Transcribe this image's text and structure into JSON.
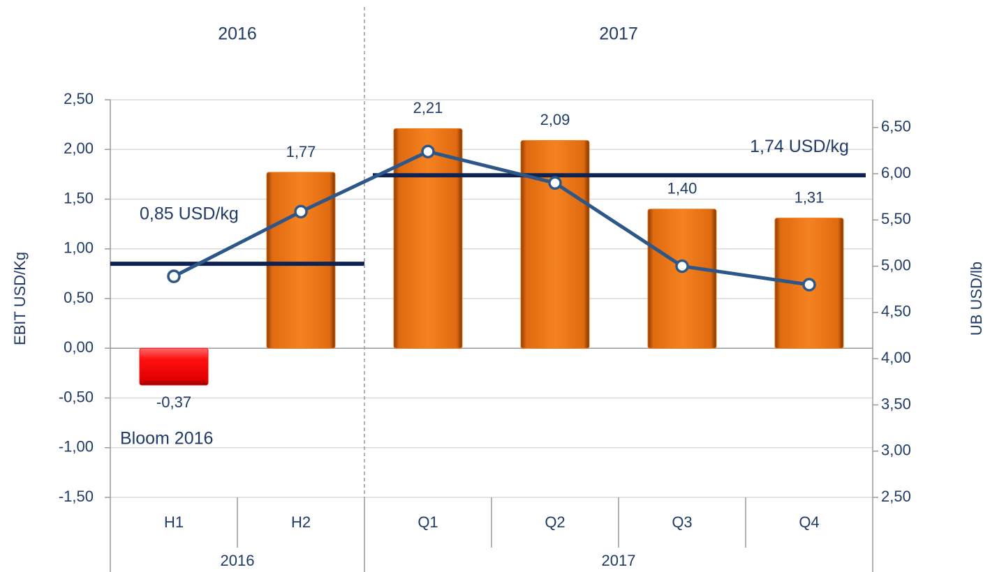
{
  "chart_data": {
    "type": "bar_line",
    "groups": [
      {
        "label": "2016",
        "categories": [
          "H1",
          "H2"
        ],
        "average": {
          "value": 0.85,
          "label": "0,85 USD/kg"
        }
      },
      {
        "label": "2017",
        "categories": [
          "Q1",
          "Q2",
          "Q3",
          "Q4"
        ],
        "average": {
          "value": 1.74,
          "label": "1,74 USD/kg"
        }
      }
    ],
    "series": [
      {
        "name": "EBIT USD/Kg",
        "type": "bar",
        "color": "#f07814",
        "negative_color": "#ff0a0a",
        "values": [
          -0.37,
          1.77,
          2.21,
          2.09,
          1.4,
          1.31
        ],
        "value_labels": [
          "-0,37",
          "1,77",
          "2,21",
          "2,09",
          "1,40",
          "1,31"
        ]
      },
      {
        "name": "UB USD/lb",
        "type": "line",
        "axis": "y2",
        "color": "#2d5689",
        "values": [
          4.89,
          5.59,
          6.24,
          5.9,
          5.0,
          4.8
        ]
      }
    ],
    "average_color": "#0e2352",
    "annotations": [
      {
        "text": "Bloom 2016"
      }
    ],
    "ylabel": "EBIT USD/Kg",
    "y2label": "UB USD/lb",
    "ylim": [
      -1.5,
      2.5
    ],
    "yticks": [
      {
        "value": -1.5,
        "label": "-1,50"
      },
      {
        "value": -1,
        "label": "-1,00"
      },
      {
        "value": -0.5,
        "label": "-0,50"
      },
      {
        "value": 0,
        "label": "0,00"
      },
      {
        "value": 0.5,
        "label": "0,50"
      },
      {
        "value": 1,
        "label": "1,00"
      },
      {
        "value": 1.5,
        "label": "1,50"
      },
      {
        "value": 2,
        "label": "2,00"
      },
      {
        "value": 2.5,
        "label": "2,50"
      }
    ],
    "y2lim": [
      2.5,
      6.8
    ],
    "y2ticks": [
      {
        "value": 2.5,
        "label": "2,50"
      },
      {
        "value": 3,
        "label": "3,00"
      },
      {
        "value": 3.5,
        "label": "3,50"
      },
      {
        "value": 4,
        "label": "4,00"
      },
      {
        "value": 4.5,
        "label": "4,50"
      },
      {
        "value": 5,
        "label": "5,00"
      },
      {
        "value": 5.5,
        "label": "5,50"
      },
      {
        "value": 6,
        "label": "6,00"
      },
      {
        "value": 6.5,
        "label": "6,50"
      }
    ],
    "grid": true
  }
}
